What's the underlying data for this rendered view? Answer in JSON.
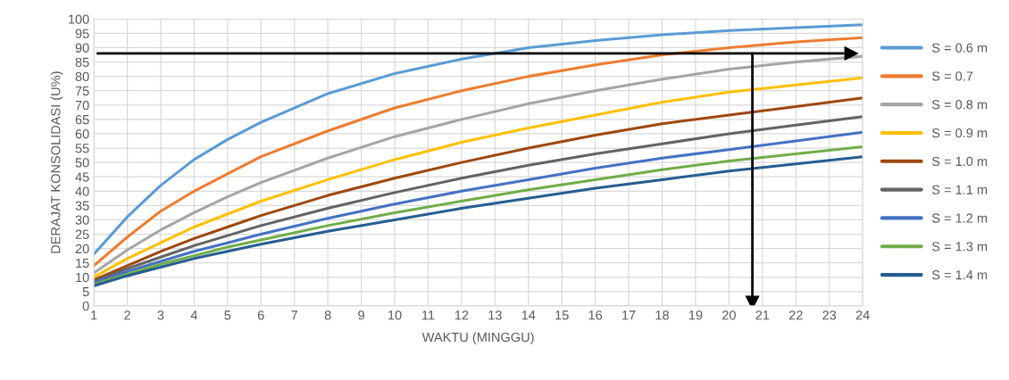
{
  "chart_data": {
    "type": "line",
    "xlabel": "WAKTU (MINGGU)",
    "ylabel": "DERAJAT KONSOLIDASI (U%)",
    "x": [
      1,
      2,
      3,
      4,
      5,
      6,
      8,
      10,
      12,
      14,
      16,
      18,
      20,
      22,
      24
    ],
    "series": [
      {
        "name": "S = 0.6 m",
        "color": "#5b9bd5",
        "values": [
          18,
          31,
          42,
          51,
          58,
          64,
          74,
          81,
          86,
          90,
          92.5,
          94.5,
          96,
          97,
          98
        ]
      },
      {
        "name": "S = 0.7",
        "color": "#ed7d31",
        "values": [
          14,
          24,
          33,
          40,
          46,
          52,
          61,
          69,
          75,
          80,
          84,
          87.5,
          90,
          92,
          93.5
        ]
      },
      {
        "name": "S = 0.8 m",
        "color": "#a5a5a5",
        "values": [
          11.5,
          19.5,
          26.5,
          32.5,
          38,
          43,
          51.5,
          59,
          65,
          70.5,
          75,
          79,
          82.5,
          85,
          87
        ]
      },
      {
        "name": "S = 0.9 m",
        "color": "#ffc000",
        "values": [
          10,
          16.5,
          22,
          27.5,
          32,
          36.5,
          44,
          51,
          57,
          62,
          66.5,
          71,
          74.5,
          77,
          79.5
        ]
      },
      {
        "name": "S = 1.0 m",
        "color": "#9e480e",
        "values": [
          9,
          14,
          19,
          23.5,
          27.5,
          31.5,
          38.5,
          44.5,
          50,
          55,
          59.5,
          63.5,
          66.5,
          69.5,
          72.5
        ]
      },
      {
        "name": "S = 1.1 m",
        "color": "#636363",
        "values": [
          8.5,
          13,
          17,
          21,
          24.5,
          28,
          34,
          39.5,
          44.5,
          49,
          53,
          56.5,
          60,
          63,
          66
        ]
      },
      {
        "name": "S = 1.2 m",
        "color": "#4472c4",
        "values": [
          8,
          12,
          15.5,
          19,
          22,
          25,
          30.5,
          35.5,
          40,
          44,
          48,
          51.5,
          54.5,
          57.5,
          60.5
        ]
      },
      {
        "name": "S = 1.3 m",
        "color": "#70ad47",
        "values": [
          7.5,
          11,
          14.5,
          17.5,
          20.5,
          23,
          28,
          32.5,
          36.5,
          40.5,
          44,
          47.5,
          50.5,
          53,
          55.5
        ]
      },
      {
        "name": "S = 1.4 m",
        "color": "#255e91",
        "values": [
          7,
          10.5,
          13.5,
          16.5,
          19,
          21.5,
          26,
          30,
          34,
          37.5,
          41,
          44,
          47,
          49.5,
          52
        ]
      }
    ],
    "xlim": [
      1,
      24
    ],
    "xticks": [
      1,
      2,
      3,
      4,
      5,
      6,
      7,
      8,
      9,
      10,
      11,
      12,
      13,
      14,
      15,
      16,
      17,
      18,
      19,
      20,
      21,
      22,
      23,
      24
    ],
    "ylim": [
      0,
      100
    ],
    "yticks": [
      0,
      5,
      10,
      15,
      20,
      25,
      30,
      35,
      40,
      45,
      50,
      55,
      60,
      65,
      70,
      75,
      80,
      85,
      90,
      95,
      100
    ],
    "ref_lines": [
      {
        "axis": "y",
        "value": 88,
        "color": "#000000"
      },
      {
        "axis": "x",
        "value": 20.7,
        "color": "#000000"
      }
    ],
    "grid": true,
    "legend": "right",
    "marker": "none",
    "line_style": "solid"
  }
}
